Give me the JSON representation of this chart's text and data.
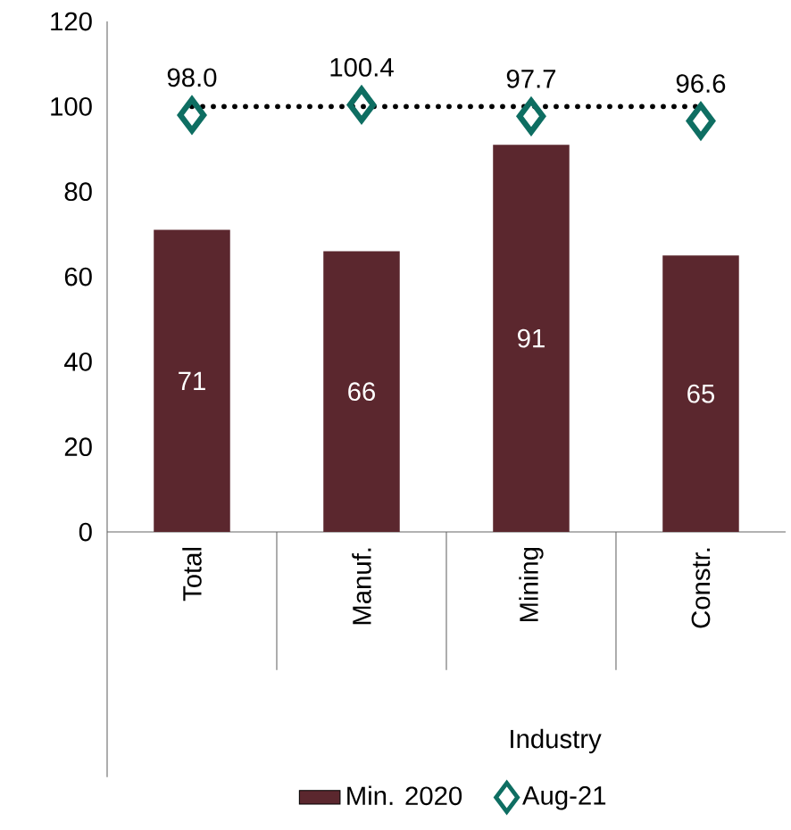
{
  "chart_data": {
    "type": "bar",
    "xlabel": "Industry",
    "categories": [
      "Total",
      "Manuf.",
      "Mining",
      "Constr."
    ],
    "series": [
      {
        "name": "Min. 2020",
        "color": "#5b272e",
        "values": [
          71,
          66,
          91,
          65
        ],
        "value_labels": [
          "71",
          "66",
          "91",
          "65"
        ]
      },
      {
        "name": "Aug-21",
        "type": "scatter",
        "color": "#0e6e62",
        "values": [
          98.0,
          100.4,
          97.7,
          96.6
        ],
        "value_labels": [
          "98.0",
          "100.4",
          "97.7",
          "96.6"
        ]
      }
    ],
    "ylim": [
      0,
      120
    ],
    "yticks": [
      0,
      20,
      40,
      60,
      80,
      100,
      120
    ],
    "ref_lines": [
      {
        "axis": "y",
        "value": 100,
        "color": "#000000",
        "line_style": "dotted"
      }
    ],
    "legend": "bottom",
    "marker": "diamond"
  }
}
